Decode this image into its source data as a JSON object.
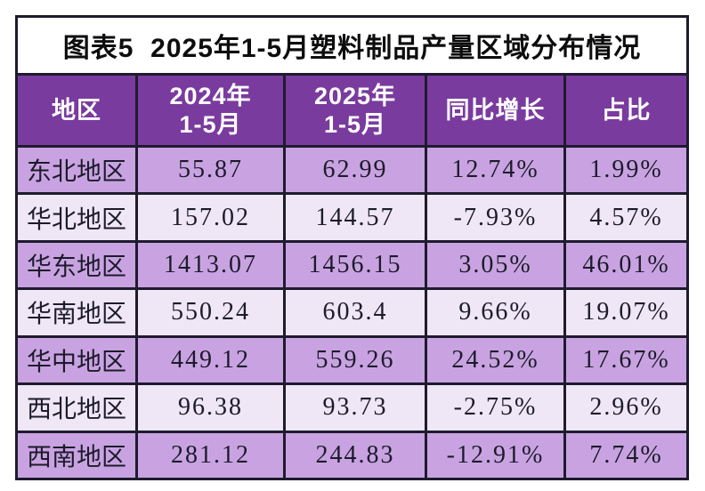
{
  "title": "图表5  2025年1-5月塑料制品产量区域分布情况",
  "colors": {
    "header_bg": "#7a3b9e",
    "header_text": "#ffffff",
    "row_odd_bg": "#c9a3e1",
    "row_even_bg": "#efe6f6",
    "grid": "#1e1b2e",
    "body_text": "#1c1b2b",
    "title_text": "#0d0d0d",
    "page_bg": "#ffffff"
  },
  "table": {
    "columns": [
      {
        "label": "地区"
      },
      {
        "label": "2024年\n1-5月"
      },
      {
        "label": "2025年\n1-5月"
      },
      {
        "label": "同比增长"
      },
      {
        "label": "占比"
      }
    ],
    "rows": [
      {
        "cells": [
          "东北地区",
          "55.87",
          "62.99",
          "12.74%",
          "1.99%"
        ]
      },
      {
        "cells": [
          "华北地区",
          "157.02",
          "144.57",
          "-7.93%",
          "4.57%"
        ]
      },
      {
        "cells": [
          "华东地区",
          "1413.07",
          "1456.15",
          "3.05%",
          "46.01%"
        ]
      },
      {
        "cells": [
          "华南地区",
          "550.24",
          "603.4",
          "9.66%",
          "19.07%"
        ]
      },
      {
        "cells": [
          "华中地区",
          "449.12",
          "559.26",
          "24.52%",
          "17.67%"
        ]
      },
      {
        "cells": [
          "西北地区",
          "96.38",
          "93.73",
          "-2.75%",
          "2.96%"
        ]
      },
      {
        "cells": [
          "西南地区",
          "281.12",
          "244.83",
          "-12.91%",
          "7.74%"
        ]
      }
    ]
  },
  "chart_data": {
    "type": "table",
    "title": "图表5 2025年1-5月塑料制品产量区域分布情况",
    "columns": [
      "地区",
      "2024年1-5月",
      "2025年1-5月",
      "同比增长",
      "占比"
    ],
    "categories": [
      "东北地区",
      "华北地区",
      "华东地区",
      "华南地区",
      "华中地区",
      "西北地区",
      "西南地区"
    ],
    "series": [
      {
        "name": "2024年1-5月",
        "values": [
          55.87,
          157.02,
          1413.07,
          550.24,
          449.12,
          96.38,
          281.12
        ]
      },
      {
        "name": "2025年1-5月",
        "values": [
          62.99,
          144.57,
          1456.15,
          603.4,
          559.26,
          93.73,
          244.83
        ]
      },
      {
        "name": "同比增长(%)",
        "values": [
          12.74,
          -7.93,
          3.05,
          9.66,
          24.52,
          -2.75,
          -12.91
        ]
      },
      {
        "name": "占比(%)",
        "values": [
          1.99,
          4.57,
          46.01,
          19.07,
          17.67,
          2.96,
          7.74
        ]
      }
    ]
  }
}
